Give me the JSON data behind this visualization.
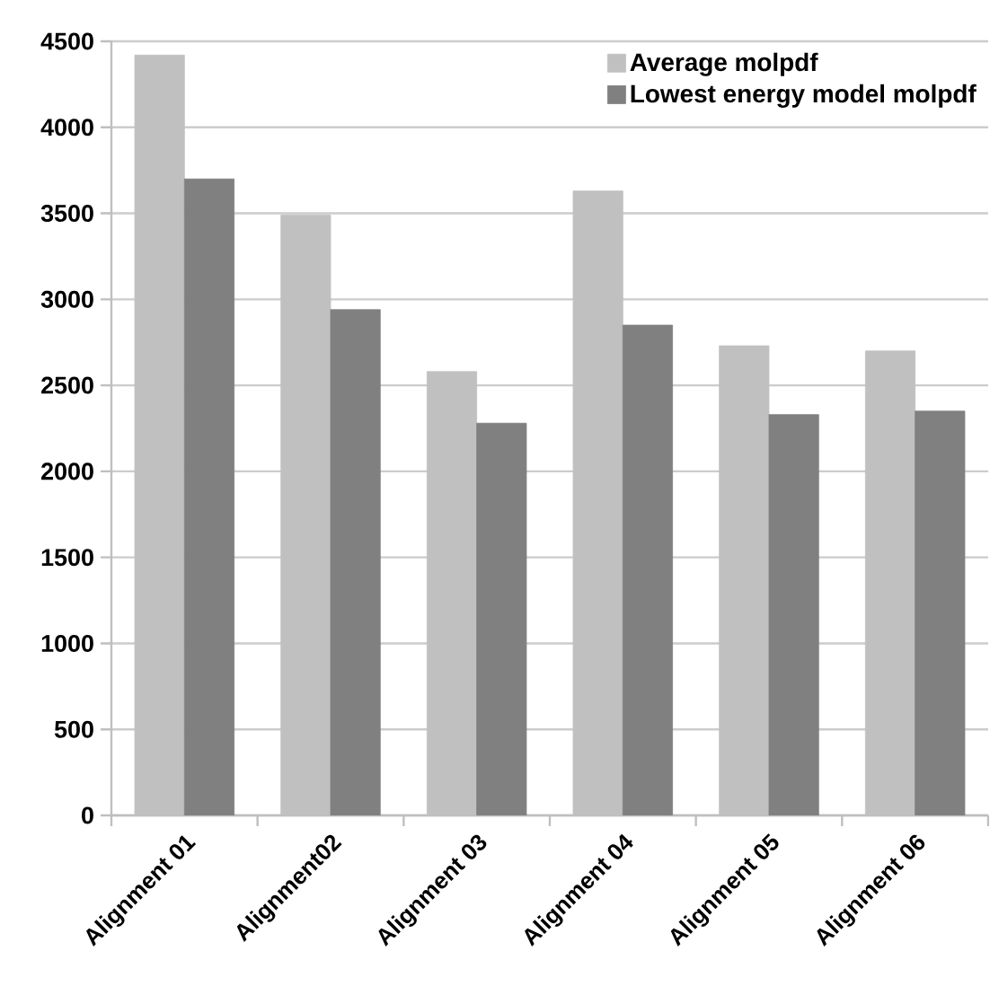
{
  "chart_data": {
    "type": "bar",
    "categories": [
      "Alignment 01",
      "Alignment02",
      "Alignment 03",
      "Alignment 04",
      "Alignment 05",
      "Alignment 06"
    ],
    "series": [
      {
        "name": "Average molpdf",
        "color": "#c0c0c0",
        "values": [
          4420,
          3490,
          2580,
          3630,
          2730,
          2700
        ]
      },
      {
        "name": "Lowest energy model molpdf",
        "color": "#808080",
        "values": [
          3700,
          2940,
          2280,
          2850,
          2330,
          2350
        ]
      }
    ],
    "ylim": [
      0,
      4500
    ],
    "yticks": [
      0,
      500,
      1000,
      1500,
      2000,
      2500,
      3000,
      3500,
      4000,
      4500
    ],
    "grid": "y",
    "legend": "top right"
  }
}
